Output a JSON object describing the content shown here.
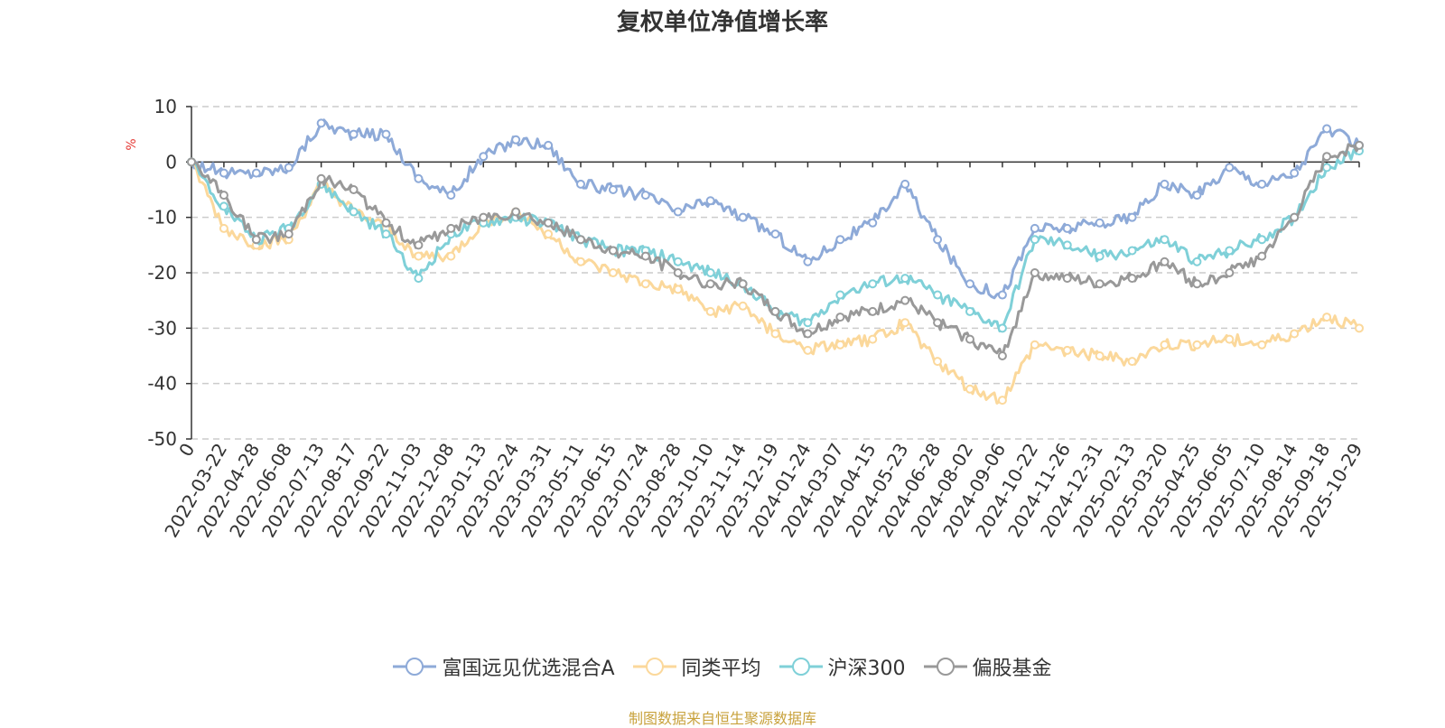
{
  "chart_data": {
    "type": "line",
    "title": "复权单位净值增长率",
    "ylabel": "%",
    "xlabel": "",
    "ylim": [
      -50,
      10
    ],
    "yticks": [
      10,
      0,
      -10,
      -20,
      -30,
      -40,
      -50
    ],
    "grid": true,
    "legend_position": "bottom",
    "x": [
      "0",
      "2022-03-22",
      "2022-04-28",
      "2022-06-08",
      "2022-07-13",
      "2022-08-17",
      "2022-09-22",
      "2022-11-03",
      "2022-12-08",
      "2023-01-13",
      "2023-02-24",
      "2023-03-31",
      "2023-05-11",
      "2023-06-15",
      "2023-07-24",
      "2023-08-28",
      "2023-10-10",
      "2023-11-14",
      "2023-12-19",
      "2024-01-24",
      "2024-03-07",
      "2024-04-15",
      "2024-05-23",
      "2024-06-28",
      "2024-08-02",
      "2024-09-06",
      "2024-10-22",
      "2024-11-26",
      "2024-12-31",
      "2025-02-13",
      "2025-03-20",
      "2025-04-25",
      "2025-06-05",
      "2025-07-10",
      "2025-08-14",
      "2025-09-18",
      "2025-10-29"
    ],
    "series": [
      {
        "name": "富国远见优选混合A",
        "color": "#8eaad8",
        "values": [
          0,
          -2,
          -2,
          -1,
          7,
          5,
          5,
          -3,
          -6,
          1,
          4,
          3,
          -4,
          -5,
          -6,
          -9,
          -7,
          -10,
          -13,
          -18,
          -14,
          -11,
          -4,
          -14,
          -22,
          -24,
          -12,
          -12,
          -11,
          -10,
          -4,
          -6,
          -1,
          -4,
          -2,
          6,
          3
        ]
      },
      {
        "name": "同类平均",
        "color": "#fbd89b",
        "values": [
          0,
          -12,
          -15,
          -14,
          -4,
          -9,
          -12,
          -17,
          -17,
          -11,
          -9,
          -13,
          -18,
          -20,
          -22,
          -23,
          -27,
          -26,
          -31,
          -34,
          -33,
          -32,
          -29,
          -36,
          -41,
          -43,
          -33,
          -34,
          -35,
          -36,
          -33,
          -33,
          -32,
          -33,
          -31,
          -28,
          -30
        ]
      },
      {
        "name": "沪深300",
        "color": "#7fd0d8",
        "values": [
          0,
          -8,
          -14,
          -12,
          -4,
          -9,
          -13,
          -21,
          -13,
          -11,
          -10,
          -11,
          -14,
          -16,
          -16,
          -18,
          -20,
          -22,
          -27,
          -29,
          -24,
          -22,
          -21,
          -24,
          -27,
          -30,
          -14,
          -15,
          -17,
          -16,
          -14,
          -18,
          -16,
          -14,
          -10,
          -1,
          2
        ]
      },
      {
        "name": "偏股基金",
        "color": "#999999",
        "values": [
          0,
          -6,
          -14,
          -13,
          -3,
          -5,
          -11,
          -15,
          -12,
          -10,
          -9,
          -11,
          -14,
          -16,
          -17,
          -20,
          -22,
          -22,
          -27,
          -31,
          -28,
          -27,
          -25,
          -29,
          -32,
          -35,
          -20,
          -21,
          -22,
          -21,
          -18,
          -22,
          -20,
          -17,
          -10,
          1,
          3
        ]
      }
    ]
  },
  "source_note": "制图数据来自恒生聚源数据库"
}
